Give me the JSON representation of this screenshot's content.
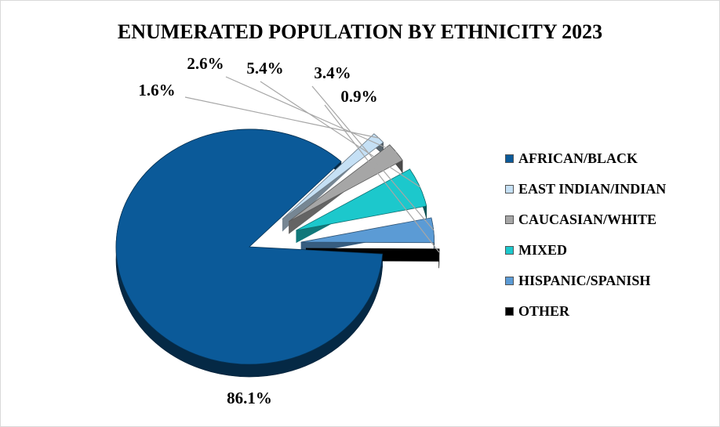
{
  "chart_data": {
    "type": "pie",
    "title": "ENUMERATED POPULATION BY ETHNICITY 2023",
    "legend_position": "right",
    "slices": [
      {
        "name": "AFRICAN/BLACK",
        "value": 86.1,
        "label": "86.1%",
        "color": "#0b5a99"
      },
      {
        "name": "EAST INDIAN/INDIAN",
        "value": 1.6,
        "label": "1.6%",
        "color": "#c5e0f5"
      },
      {
        "name": "CAUCASIAN/WHITE",
        "value": 2.6,
        "label": "2.6%",
        "color": "#a6a6a6"
      },
      {
        "name": "MIXED",
        "value": 5.4,
        "label": "5.4%",
        "color": "#1cc8cc"
      },
      {
        "name": "HISPANIC/SPANISH",
        "value": 3.4,
        "label": "3.4%",
        "color": "#5b9bd5"
      },
      {
        "name": "OTHER",
        "value": 0.9,
        "label": "0.9%",
        "color": "#000000"
      }
    ]
  }
}
